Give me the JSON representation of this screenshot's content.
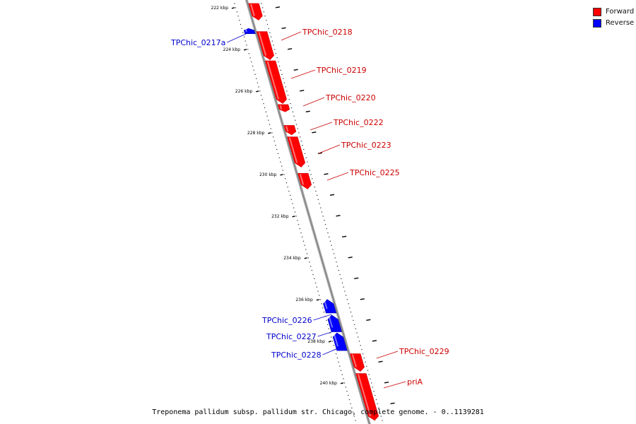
{
  "legend": {
    "forward_label": "Forward",
    "reverse_label": "Reverse",
    "forward_color": "#ff0000",
    "reverse_color": "#0000ff"
  },
  "caption": "Treponema pallidum subsp. pallidum str. Chicago, complete genome. - 0..1139281",
  "colors": {
    "backbone": "#888888",
    "tick": "#000000"
  },
  "ticks": [
    {
      "bp": 222000,
      "label": "222 kbp"
    },
    {
      "bp": 224000,
      "label": "224 kbp"
    },
    {
      "bp": 226000,
      "label": "226 kbp"
    },
    {
      "bp": 228000,
      "label": "228 kbp"
    },
    {
      "bp": 230000,
      "label": "230 kbp"
    },
    {
      "bp": 232000,
      "label": "232 kbp"
    },
    {
      "bp": 234000,
      "label": "234 kbp"
    },
    {
      "bp": 236000,
      "label": "236 kbp"
    },
    {
      "bp": 238000,
      "label": "238 kbp"
    },
    {
      "bp": 240000,
      "label": "240 kbp"
    }
  ],
  "genes": [
    {
      "name": "",
      "strand": "forward",
      "start": 221800,
      "end": 222600
    },
    {
      "name": "TPChic_0217a",
      "strand": "reverse",
      "start": 223000,
      "end": 223250
    },
    {
      "name": "TPChic_0218",
      "strand": "forward",
      "start": 223150,
      "end": 224500
    },
    {
      "name": "TPChic_0219",
      "strand": "forward",
      "start": 224550,
      "end": 226600
    },
    {
      "name": "TPChic_0220",
      "strand": "forward",
      "start": 226650,
      "end": 227000
    },
    {
      "name": "TPChic_0222",
      "strand": "forward",
      "start": 227650,
      "end": 228100
    },
    {
      "name": "TPChic_0223",
      "strand": "forward",
      "start": 228200,
      "end": 229650
    },
    {
      "name": "TPChic_0225",
      "strand": "forward",
      "start": 229950,
      "end": 230700
    },
    {
      "name": "TPChic_0226",
      "strand": "reverse",
      "start": 236000,
      "end": 236650
    },
    {
      "name": "TPChic_0227",
      "strand": "reverse",
      "start": 236750,
      "end": 237550
    },
    {
      "name": "TPChic_0228",
      "strand": "reverse",
      "start": 237600,
      "end": 238450
    },
    {
      "name": "TPChic_0229",
      "strand": "forward",
      "start": 238600,
      "end": 239450
    },
    {
      "name": "priA",
      "strand": "forward",
      "start": 239550,
      "end": 241800
    }
  ]
}
